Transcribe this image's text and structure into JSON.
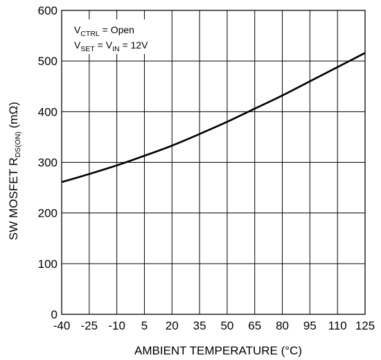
{
  "chart_data": {
    "type": "line",
    "title": "",
    "xlabel": "AMBIENT TEMPERATURE (°C)",
    "ylabel": {
      "main": "SW MOSFET R",
      "subscript": "DS(ON)",
      "suffix": " (mΩ)"
    },
    "xlim": [
      -40,
      125
    ],
    "ylim": [
      0,
      600
    ],
    "x_ticks": [
      -40,
      -25,
      -10,
      5,
      20,
      35,
      50,
      65,
      80,
      95,
      110,
      125
    ],
    "y_ticks": [
      0,
      100,
      200,
      300,
      400,
      500,
      600
    ],
    "grid": true,
    "legend": "none",
    "annotations": [
      {
        "main": "V",
        "subscript": "CTRL",
        "rest": " = Open"
      },
      {
        "main": "V",
        "subscript": "SET",
        "rest": " = V",
        "subscript2": "IN",
        "rest2": " = 12V"
      }
    ],
    "series": [
      {
        "color": "#000000",
        "x": [
          -40,
          -25,
          -10,
          5,
          20,
          35,
          50,
          65,
          80,
          95,
          110,
          125
        ],
        "y": [
          261,
          277,
          294,
          313,
          333,
          356,
          380,
          406,
          432,
          460,
          488,
          516
        ]
      }
    ]
  }
}
